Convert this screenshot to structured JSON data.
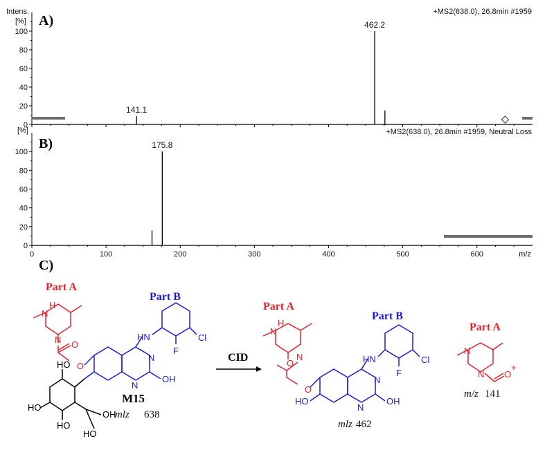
{
  "chart_data": [
    {
      "type": "bar",
      "panel": "A)",
      "header": "+MS2(638.0), 26.8min #1959",
      "ylabel_line1": "Intens.",
      "ylabel_line2": "[%]",
      "ylim": [
        0,
        120
      ],
      "yticks": [
        "0",
        "20",
        "40",
        "60",
        "80",
        "100"
      ],
      "xlim": [
        0,
        675
      ],
      "points": [
        {
          "x": 141.1,
          "y": 9,
          "label": "141.1"
        },
        {
          "x": 462.2,
          "y": 100,
          "label": "462.2"
        },
        {
          "x": 476,
          "y": 15,
          "label": ""
        }
      ],
      "marker_x": 638
    },
    {
      "type": "bar",
      "panel": "B)",
      "header": "+MS2(638.0), 26.8min #1959, Neutral Loss",
      "ylabel_line2": "[%]",
      "ylim": [
        0,
        120
      ],
      "yticks": [
        "0",
        "20",
        "40",
        "60",
        "80",
        "100"
      ],
      "xlim": [
        0,
        675
      ],
      "xticks": [
        "0",
        "100",
        "200",
        "300",
        "400",
        "500",
        "600"
      ],
      "xlabel": "m/z",
      "points": [
        {
          "x": 162,
          "y": 16,
          "label": ""
        },
        {
          "x": 175.8,
          "y": 100,
          "label": "175.8"
        }
      ]
    }
  ],
  "scheme": {
    "panel": "C)",
    "part_a": "Part A",
    "part_b": "Part B",
    "arrow_label": "CID",
    "compound": "M15",
    "mz_prefix": "mlz",
    "mz_prefix_ion": "m/z",
    "mz_parent": "638",
    "mz_product": "462",
    "mz_ion": "141",
    "atoms": {
      "n": "N",
      "h": "H",
      "o": "O",
      "hn": "HN",
      "f": "F",
      "cl": "Cl",
      "oh": "OH",
      "ho": "HO",
      "plus": "+"
    }
  },
  "colors": {
    "red": "#e8202a",
    "blue": "#1a1adc",
    "black": "#000000",
    "gray": "#6e6e6e"
  }
}
